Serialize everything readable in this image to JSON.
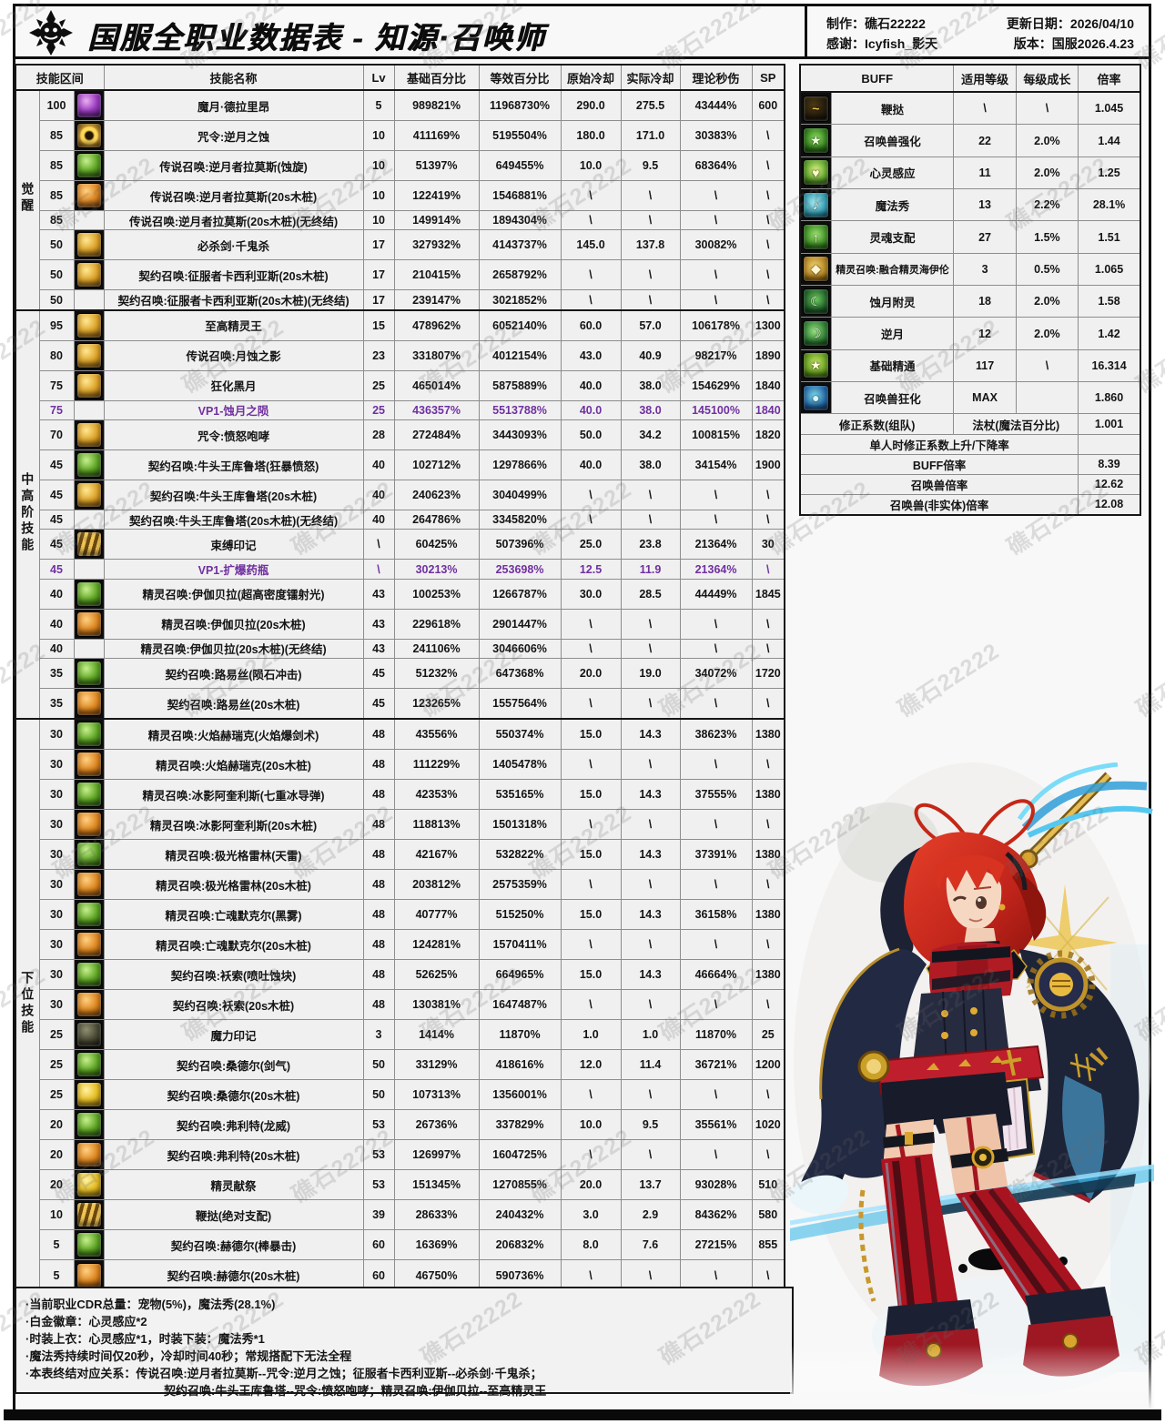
{
  "header": {
    "title": "国服全职业数据表 - 知源·召唤师",
    "credits": {
      "maker_label": "制作：",
      "maker": "礁石22222",
      "thanks_label": "感谢：",
      "thanks": "Icyfish_影天",
      "date_label": "更新日期：",
      "date": "2026/04/10",
      "version_label": "版本：",
      "version": "国服2026.4.23"
    }
  },
  "watermark": "礁石22222",
  "colors": {
    "vp_text": "#7030a0",
    "frame": "#0f0f0f",
    "cell_bg": "#f0f0f0"
  },
  "skill_table": {
    "headers": [
      "技能区间",
      "技能名称",
      "Lv",
      "基础百分比",
      "等效百分比",
      "原始冷却",
      "实际冷却",
      "理论秒伤",
      "SP"
    ],
    "groups": [
      {
        "label": "觉醒",
        "rows": [
          [
            "100",
            "purple",
            "魔月·德拉里昂",
            "5",
            "989821%",
            "11968730%",
            "290.0",
            "275.5",
            "43444%",
            "600",
            0
          ],
          [
            "85",
            "goldring",
            "咒令:逆月之蚀",
            "10",
            "411169%",
            "5195504%",
            "180.0",
            "171.0",
            "30383%",
            "\\",
            0
          ],
          [
            "85",
            "green",
            "传说召唤:逆月者拉莫斯(蚀旋)",
            "10",
            "51397%",
            "649455%",
            "10.0",
            "9.5",
            "68364%",
            "\\",
            0
          ],
          [
            "85",
            "orange",
            "传说召唤:逆月者拉莫斯(20s木桩)",
            "10",
            "122419%",
            "1546881%",
            "\\",
            "\\",
            "\\",
            "\\",
            0
          ],
          [
            "85",
            "none",
            "传说召唤:逆月者拉莫斯(20s木桩)(无终结)",
            "10",
            "149914%",
            "1894304%",
            "\\",
            "\\",
            "\\",
            "\\",
            0
          ],
          [
            "50",
            "gold",
            "必杀剑·千鬼杀",
            "17",
            "327932%",
            "4143737%",
            "145.0",
            "137.8",
            "30082%",
            "\\",
            0
          ],
          [
            "50",
            "gold",
            "契约召唤:征服者卡西利亚斯(20s木桩)",
            "17",
            "210415%",
            "2658792%",
            "\\",
            "\\",
            "\\",
            "\\",
            0
          ],
          [
            "50",
            "none",
            "契约召唤:征服者卡西利亚斯(20s木桩)(无终结)",
            "17",
            "239147%",
            "3021852%",
            "\\",
            "\\",
            "\\",
            "\\",
            0
          ]
        ]
      },
      {
        "label": "中高阶技能",
        "rows": [
          [
            "95",
            "gold",
            "至高精灵王",
            "15",
            "478962%",
            "6052140%",
            "60.0",
            "57.0",
            "106178%",
            "1300",
            0
          ],
          [
            "80",
            "gold",
            "传说召唤:月蚀之影",
            "23",
            "331807%",
            "4012154%",
            "43.0",
            "40.9",
            "98217%",
            "1890",
            0
          ],
          [
            "75",
            "gold",
            "狂化黑月",
            "25",
            "465014%",
            "5875889%",
            "40.0",
            "38.0",
            "154629%",
            "1840",
            0
          ],
          [
            "75",
            "none",
            "VP1-蚀月之陨",
            "25",
            "436357%",
            "5513788%",
            "40.0",
            "38.0",
            "145100%",
            "1840",
            1
          ],
          [
            "70",
            "gold",
            "咒令:愤怒咆哮",
            "28",
            "272484%",
            "3443093%",
            "50.0",
            "34.2",
            "100815%",
            "1820",
            0
          ],
          [
            "45",
            "green",
            "契约召唤:牛头王库鲁塔(狂暴愤怒)",
            "40",
            "102712%",
            "1297866%",
            "40.0",
            "38.0",
            "34154%",
            "1900",
            0
          ],
          [
            "45",
            "gold",
            "契约召唤:牛头王库鲁塔(20s木桩)",
            "40",
            "240623%",
            "3040499%",
            "\\",
            "\\",
            "\\",
            "\\",
            0
          ],
          [
            "45",
            "none",
            "契约召唤:牛头王库鲁塔(20s木桩)(无终结)",
            "40",
            "264786%",
            "3345820%",
            "\\",
            "\\",
            "\\",
            "\\",
            0
          ],
          [
            "45",
            "goldwave",
            "束缚印记",
            "\\",
            "60425%",
            "507396%",
            "25.0",
            "23.8",
            "21364%",
            "30",
            0
          ],
          [
            "45",
            "none",
            "VP1-扩爆药瓶",
            "\\",
            "30213%",
            "253698%",
            "12.5",
            "11.9",
            "21364%",
            "\\",
            1
          ],
          [
            "40",
            "green",
            "精灵召唤:伊伽贝拉(超高密度镭射光)",
            "43",
            "100253%",
            "1266787%",
            "30.0",
            "28.5",
            "44449%",
            "1845",
            0
          ],
          [
            "40",
            "orange",
            "精灵召唤:伊伽贝拉(20s木桩)",
            "43",
            "229618%",
            "2901447%",
            "\\",
            "\\",
            "\\",
            "\\",
            0
          ],
          [
            "40",
            "none",
            "精灵召唤:伊伽贝拉(20s木桩)(无终结)",
            "43",
            "241106%",
            "3046606%",
            "\\",
            "\\",
            "\\",
            "\\",
            0
          ],
          [
            "35",
            "green",
            "契约召唤:路易丝(陨石冲击)",
            "45",
            "51232%",
            "647368%",
            "20.0",
            "19.0",
            "34072%",
            "1720",
            0
          ],
          [
            "35",
            "orange",
            "契约召唤:路易丝(20s木桩)",
            "45",
            "123265%",
            "1557564%",
            "\\",
            "\\",
            "\\",
            "\\",
            0
          ]
        ]
      },
      {
        "label": "下位技能",
        "rows": [
          [
            "30",
            "green",
            "精灵召唤:火焰赫瑞克(火焰爆剑术)",
            "48",
            "43556%",
            "550374%",
            "15.0",
            "14.3",
            "38623%",
            "1380",
            0
          ],
          [
            "30",
            "orange",
            "精灵召唤:火焰赫瑞克(20s木桩)",
            "48",
            "111229%",
            "1405478%",
            "\\",
            "\\",
            "\\",
            "\\",
            0
          ],
          [
            "30",
            "green",
            "精灵召唤:冰影阿奎利斯(七重冰导弹)",
            "48",
            "42353%",
            "535165%",
            "15.0",
            "14.3",
            "37555%",
            "1380",
            0
          ],
          [
            "30",
            "orange",
            "精灵召唤:冰影阿奎利斯(20s木桩)",
            "48",
            "118813%",
            "1501318%",
            "\\",
            "\\",
            "\\",
            "\\",
            0
          ],
          [
            "30",
            "green",
            "精灵召唤:极光格雷林(天雷)",
            "48",
            "42167%",
            "532822%",
            "15.0",
            "14.3",
            "37391%",
            "1380",
            0
          ],
          [
            "30",
            "orange",
            "精灵召唤:极光格雷林(20s木桩)",
            "48",
            "203812%",
            "2575359%",
            "\\",
            "\\",
            "\\",
            "\\",
            0
          ],
          [
            "30",
            "green",
            "精灵召唤:亡魂默克尔(黑雾)",
            "48",
            "40777%",
            "515250%",
            "15.0",
            "14.3",
            "36158%",
            "1380",
            0
          ],
          [
            "30",
            "orange",
            "精灵召唤:亡魂默克尔(20s木桩)",
            "48",
            "124281%",
            "1570411%",
            "\\",
            "\\",
            "\\",
            "\\",
            0
          ],
          [
            "30",
            "green",
            "契约召唤:袄索(喷吐蚀块)",
            "48",
            "52625%",
            "664965%",
            "15.0",
            "14.3",
            "46664%",
            "1380",
            0
          ],
          [
            "30",
            "orange",
            "契约召唤:袄索(20s木桩)",
            "48",
            "130381%",
            "1647487%",
            "\\",
            "\\",
            "\\",
            "\\",
            0
          ],
          [
            "25",
            "dark",
            "魔力印记",
            "3",
            "1414%",
            "11870%",
            "1.0",
            "1.0",
            "11870%",
            "25",
            0
          ],
          [
            "25",
            "green",
            "契约召唤:桑德尔(剑气)",
            "50",
            "33129%",
            "418616%",
            "12.0",
            "11.4",
            "36721%",
            "1200",
            0
          ],
          [
            "25",
            "yellow",
            "契约召唤:桑德尔(20s木桩)",
            "50",
            "107313%",
            "1356001%",
            "\\",
            "\\",
            "\\",
            "\\",
            0
          ],
          [
            "20",
            "green",
            "契约召唤:弗利特(龙威)",
            "53",
            "26736%",
            "337829%",
            "10.0",
            "9.5",
            "35561%",
            "1020",
            0
          ],
          [
            "20",
            "orange",
            "契约召唤:弗利特(20s木桩)",
            "53",
            "126997%",
            "1604725%",
            "\\",
            "\\",
            "\\",
            "\\",
            0
          ],
          [
            "20",
            "yellow",
            "精灵献祭",
            "53",
            "151345%",
            "1270855%",
            "20.0",
            "13.7",
            "93028%",
            "510",
            0
          ],
          [
            "10",
            "goldwave",
            "鞭挞(绝对支配)",
            "39",
            "28633%",
            "240432%",
            "3.0",
            "2.9",
            "84362%",
            "580",
            0
          ],
          [
            "5",
            "green",
            "契约召唤:赫德尔(棒暴击)",
            "60",
            "16369%",
            "206832%",
            "8.0",
            "7.6",
            "27215%",
            "855",
            0
          ],
          [
            "5",
            "orange",
            "契约召唤:赫德尔(20s木桩)",
            "60",
            "46750%",
            "590736%",
            "\\",
            "\\",
            "\\",
            "\\",
            0
          ]
        ]
      }
    ]
  },
  "buff_table": {
    "headers": [
      "BUFF",
      "适用等级",
      "每级成长",
      "倍率"
    ],
    "icon_glyphs": {
      "whip": "~",
      "strengthen": "★",
      "telepathy": "♥",
      "magicshow": "♪",
      "soul": "↑",
      "heilun": "◆",
      "eclipse": "☾",
      "moon": "☽",
      "mastery": "★",
      "frenzy": "●"
    },
    "rows": [
      {
        "type": "icon",
        "icon": "whip",
        "name": "鞭挞",
        "lv": "\\",
        "grow": "\\",
        "mult": "1.045"
      },
      {
        "type": "icon",
        "icon": "strengthen",
        "name": "召唤兽强化",
        "lv": "22",
        "grow": "2.0%",
        "mult": "1.44"
      },
      {
        "type": "icon",
        "icon": "telepathy",
        "name": "心灵感应",
        "lv": "11",
        "grow": "2.0%",
        "mult": "1.25"
      },
      {
        "type": "icon",
        "icon": "magicshow",
        "name": "魔法秀",
        "lv": "13",
        "grow": "2.2%",
        "mult": "28.1%"
      },
      {
        "type": "icon",
        "icon": "soul",
        "name": "灵魂支配",
        "lv": "27",
        "grow": "1.5%",
        "mult": "1.51"
      },
      {
        "type": "icon",
        "icon": "heilun",
        "name": "精灵召唤:融合精灵海伊伦",
        "lv": "3",
        "grow": "0.5%",
        "mult": "1.065"
      },
      {
        "type": "icon",
        "icon": "eclipse",
        "name": "蚀月附灵",
        "lv": "18",
        "grow": "2.0%",
        "mult": "1.58"
      },
      {
        "type": "icon",
        "icon": "moon",
        "name": "逆月",
        "lv": "12",
        "grow": "2.0%",
        "mult": "1.42"
      },
      {
        "type": "icon",
        "icon": "mastery",
        "name": "基础精通",
        "lv": "117",
        "grow": "\\",
        "mult": "16.314"
      },
      {
        "type": "icon",
        "icon": "frenzy",
        "name": "召唤兽狂化",
        "lv": "MAX",
        "grow": "",
        "mult": "1.860"
      },
      {
        "type": "fix",
        "name": "修正系数(组队)",
        "mid": "法杖(魔法百分比)",
        "mult": "1.001"
      },
      {
        "type": "wide",
        "name": "单人时修正系数上升/下降率",
        "mult": ""
      },
      {
        "type": "wide",
        "name": "BUFF倍率",
        "mult": "8.39"
      },
      {
        "type": "wide",
        "name": "召唤兽倍率",
        "mult": "12.62"
      },
      {
        "type": "wide",
        "name": "召唤兽(非实体)倍率",
        "mult": "12.08"
      }
    ]
  },
  "notes": {
    "lines": [
      {
        "text": "·当前职业CDR总量：宠物(5%)，魔法秀(28.1%)",
        "indent": false
      },
      {
        "text": "·白金徽章：心灵感应*2",
        "indent": false
      },
      {
        "text": "·时装上衣：心灵感应*1，时装下装：魔法秀*1",
        "indent": false
      },
      {
        "text": "·魔法秀持续时间仅20秒，冷却时间40秒；常规搭配下无法全程",
        "indent": false
      },
      {
        "text": "·本表终结对应关系：传说召唤:逆月者拉莫斯--咒令:逆月之蚀；征服者卡西利亚斯--必杀剑·千鬼杀；",
        "indent": false
      },
      {
        "text": "契约召唤:牛头王库鲁塔--咒令:愤怒咆哮；精灵召唤:伊伽贝拉--至高精灵王",
        "indent": true
      }
    ]
  }
}
